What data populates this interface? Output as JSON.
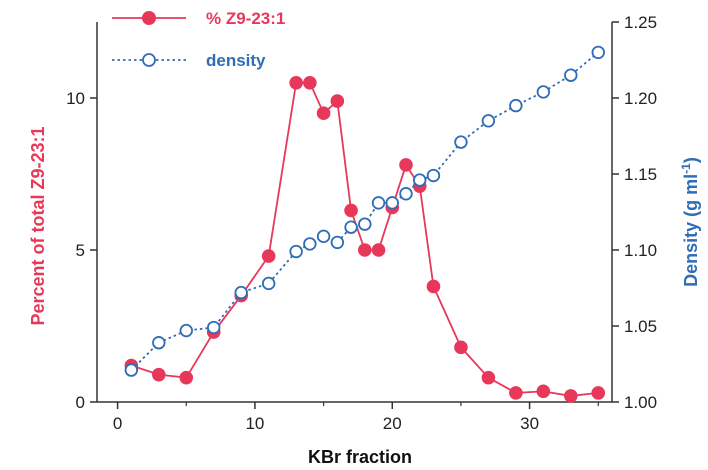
{
  "chart_data": {
    "type": "line",
    "xlabel": "KBr fraction",
    "x_ticks": [
      0,
      10,
      20,
      30
    ],
    "xlim": [
      -1.5,
      36
    ],
    "left_axis": {
      "label": "Percent of total Z9-23:1",
      "ticks": [
        0,
        5,
        10
      ],
      "ylim": [
        0,
        12.5
      ],
      "color": "#e8385a"
    },
    "right_axis": {
      "label_main": "Density (g ml",
      "label_sup": "-1",
      "label_end": ")",
      "ticks": [
        "1.00",
        "1.05",
        "1.10",
        "1.15",
        "1.20",
        "1.25"
      ],
      "ylim": [
        1.0,
        1.25
      ],
      "color": "#2f6db5"
    },
    "legend": {
      "position": "top-left"
    },
    "series": [
      {
        "name": "% Z9-23:1",
        "axis": "left",
        "style": "filled-circle-solid",
        "color": "#e8385a",
        "x": [
          1,
          3,
          5,
          7,
          9,
          11,
          13,
          14,
          15,
          16,
          17,
          18,
          19,
          20,
          21,
          22,
          23,
          25,
          27,
          29,
          31,
          33,
          35
        ],
        "values": [
          1.2,
          0.9,
          0.8,
          2.3,
          3.5,
          4.8,
          10.5,
          10.5,
          9.5,
          9.9,
          6.3,
          5.0,
          5.0,
          6.4,
          7.8,
          7.1,
          3.8,
          1.8,
          0.8,
          0.3,
          0.35,
          0.2,
          0.3
        ]
      },
      {
        "name": "density",
        "axis": "right",
        "style": "open-circle-dotted",
        "color": "#2f6db5",
        "x": [
          1,
          3,
          5,
          7,
          9,
          11,
          13,
          14,
          15,
          16,
          17,
          18,
          19,
          20,
          21,
          22,
          23,
          25,
          27,
          29,
          31,
          33,
          35
        ],
        "values": [
          1.021,
          1.039,
          1.047,
          1.049,
          1.072,
          1.078,
          1.099,
          1.104,
          1.109,
          1.105,
          1.115,
          1.117,
          1.131,
          1.131,
          1.137,
          1.146,
          1.149,
          1.171,
          1.185,
          1.195,
          1.204,
          1.215,
          1.23
        ]
      }
    ]
  }
}
